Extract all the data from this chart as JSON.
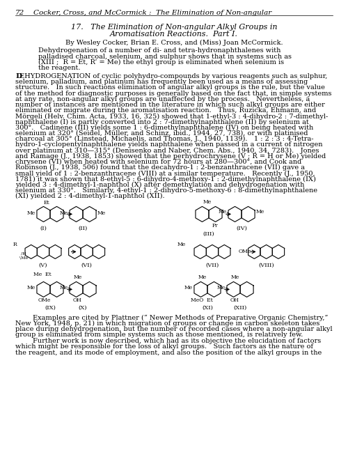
{
  "bg_color": "#ffffff",
  "header_page": "72",
  "header_text": "Cocker, Cross, and McCormick :  The Elimination of Non-angular",
  "title_line1": "17.   The Elimination of Non-angular Alkyl Groups in",
  "title_line2": "Aromatisation Reactions.  Part I.",
  "byline": "By Wesley Cocker, Brian E. Cross, and (Miss) Joan McCormick.",
  "abstract_lines": [
    "Dehydrogenation of a number of di- and tetra-hydronaphthalenes with",
    "palladised charcoal, selenium, and sulphur shows that in systems such as",
    "(XIII ;  R = Et, R’ = Me) the ethyl group is eliminated when selenium is",
    "the reagent."
  ],
  "body_lines": [
    "selenium, palladium, and platinum has frequently been used as a means of assessing",
    "structure.   In such reactions elimination of angular alkyl groups is the rule, but the value",
    "of the method for diagnostic purposes is generally based on the fact that, in simple systems",
    "at any rate, non-angular alkyl groups are unaffected by the process.   Nevertheless, a",
    "number of instances are mentioned in the literature in which such alkyl groups are either",
    "eliminated or migrate during the aromatisation reaction.   Thus, Ruzicka, Ehmann, and",
    "Mörgeli (Helv. Chim. Acta, 1933, 16, 325) showed that 1-ethyl-3 : 4-dihydro-2 : 7-dimethyl-",
    "naphthalene (I) is partly converted into 2 : 7-dimethylnaphthalene (II) by selenium at",
    "300°.   Cadinene (III) yields some 1 : 6-dimethylnaphthalene (IV) on being heated with",
    "selenium at 320° (Seidel, Müller, and Schinz, ibid., 1944, 27, 738), or with platinised",
    "charcoal at 305° (Linstead, Michaelis, and Thomas, J., 1940, 1139).   1 : 2 : 3 : 4-Tetra-",
    "hydro-1-cyclopentylnaphthalene yields naphthalene when passed in a current of nitrogen",
    "over platinum at 310—315° (Denisenko and Naber, Chem. Abs., 1940, 34, 7283).   Jones",
    "and Ramage (J., 1938, 1853) showed that the perhydrochrysene (V ; R = H or Me) yielded",
    "chrysene (VI) when heated with selenium for 72 hours at 280—300°, and Cook and",
    "Robinson (J., 1938, 506) found that the decahydro-1 : 2-benzanthracene (VII) gave a",
    "small yield of 1 : 2-benzanthracene (VIII) at a similar temperature.   Recently (J., 1950,",
    "1781) it was shown that 8-ethyl-5 : 6-dihydro-4-methoxy-1 : 2-dimethylnaphthalene (IX)",
    "yielded 3 : 4-dimethyl-1-naphthol (X) after demethylation and dehydrogenation with",
    "selenium at 330°.   Similarly, 4-ethyl-1 : 2-dihydro-5-methoxy-6 : 8-dimethylnaphthalene",
    "(XI) yielded 2 : 4-dimethyl-1-naphthol (XII)."
  ],
  "body_first_cap": "D",
  "body_first_rest": "EHYDROGENATION of cyclic polyhydro-compounds by various reagents such as sulphur,",
  "caption1_lines": [
    "        Examples are cited by Plattner (“ Newer Methods of Preparative Organic Chemistry,”",
    "New York, 1948, p. 21) in which migration of groups or change in carbon skeleton takes",
    "place during dehydrogenation, but the number of recorded cases where a non-angular alkyl",
    "group is eliminated from simple systems such as those mentioned, is relatively few."
  ],
  "caption2_lines": [
    "        Further work is now described, which had as its objective the elucidation of factors",
    "which might be responsible for the loss of alkyl groups.   Such factors as the nature of",
    "the reagent, and its mode of employment, and also the position of the alkyl groups in the"
  ]
}
